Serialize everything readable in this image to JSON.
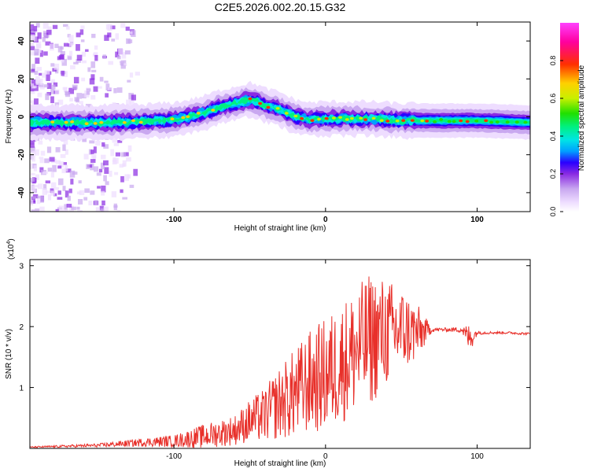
{
  "title": "C2E5.2026.002.20.15.G32",
  "colors": {
    "snr_line": "#e8302a",
    "frame": "#000000",
    "background": "#ffffff",
    "colormap_stops": [
      "#ffffff",
      "#eeddff",
      "#c9a8f0",
      "#8a2be2",
      "#2a00ff",
      "#00a0ff",
      "#00e5e5",
      "#00f080",
      "#20e000",
      "#c8f000",
      "#ffd000",
      "#ff3000",
      "#ff00a0",
      "#ff40ff"
    ]
  },
  "chart_data": [
    {
      "type": "heatmap",
      "xlabel": "Height of straight line (km)",
      "ylabel": "Frequency (Hz)",
      "xlim": [
        -195,
        135
      ],
      "ylim": [
        -50,
        50
      ],
      "xticks": [
        -100,
        0,
        100
      ],
      "yticks": [
        -40,
        -20,
        0,
        20,
        40
      ],
      "xtick_labels": [
        "-100",
        "0",
        "100"
      ],
      "ytick_labels": [
        "-40",
        "-20",
        "0",
        "20",
        "40"
      ],
      "colorbar": {
        "label": "Normalized spectral amplitude",
        "range": [
          0,
          1
        ],
        "ticks": [
          0.0,
          0.2,
          0.4,
          0.6,
          0.8
        ],
        "tick_labels": [
          "0.0",
          "0.2",
          "0.4",
          "0.6",
          "0.8"
        ]
      },
      "ridge": {
        "x": [
          -195,
          -180,
          -160,
          -140,
          -120,
          -100,
          -90,
          -80,
          -70,
          -60,
          -50,
          -45,
          -40,
          -30,
          -20,
          -10,
          0,
          10,
          20,
          30,
          40,
          50,
          60,
          80,
          100,
          120,
          135
        ],
        "freq": [
          -3,
          -3,
          -3,
          -3,
          -2.5,
          -1.5,
          0,
          2,
          5,
          7,
          9,
          8,
          6,
          4,
          0,
          -1.5,
          -1,
          -1,
          -1,
          -1,
          -1.5,
          -2,
          -2,
          -2,
          -2,
          -2.5,
          -3
        ]
      },
      "grid": false
    },
    {
      "type": "line",
      "xlabel": "Height of straight line (km)",
      "ylabel": "SNR (10 * v/v)",
      "scale_label": "(x10",
      "scale_exponent": "4",
      "scale_suffix": ")",
      "xlim": [
        -195,
        135
      ],
      "ylim": [
        0,
        3.1
      ],
      "xticks": [
        -100,
        0,
        100
      ],
      "yticks": [
        1,
        2,
        3
      ],
      "xtick_labels": [
        "-100",
        "0",
        "100"
      ],
      "ytick_labels": [
        "1",
        "2",
        "3"
      ],
      "envelope": {
        "x": [
          -195,
          -150,
          -120,
          -100,
          -80,
          -60,
          -50,
          -40,
          -30,
          -20,
          -10,
          0,
          10,
          20,
          30,
          40,
          50,
          60,
          70,
          80,
          90,
          95,
          100,
          110,
          120,
          135
        ],
        "mean": [
          0.02,
          0.05,
          0.1,
          0.12,
          0.2,
          0.3,
          0.45,
          0.55,
          0.75,
          0.9,
          1.1,
          1.2,
          1.4,
          1.6,
          1.8,
          1.9,
          1.95,
          1.9,
          1.95,
          1.95,
          1.95,
          1.8,
          1.9,
          1.9,
          1.9,
          1.88
        ],
        "amp": [
          0.01,
          0.03,
          0.07,
          0.1,
          0.2,
          0.25,
          0.35,
          0.45,
          0.6,
          0.75,
          0.85,
          0.95,
          1.0,
          1.05,
          1.1,
          0.9,
          0.7,
          0.5,
          0.04,
          0.03,
          0.05,
          0.25,
          0.03,
          0.02,
          0.02,
          0.02
        ]
      },
      "grid": false
    }
  ]
}
